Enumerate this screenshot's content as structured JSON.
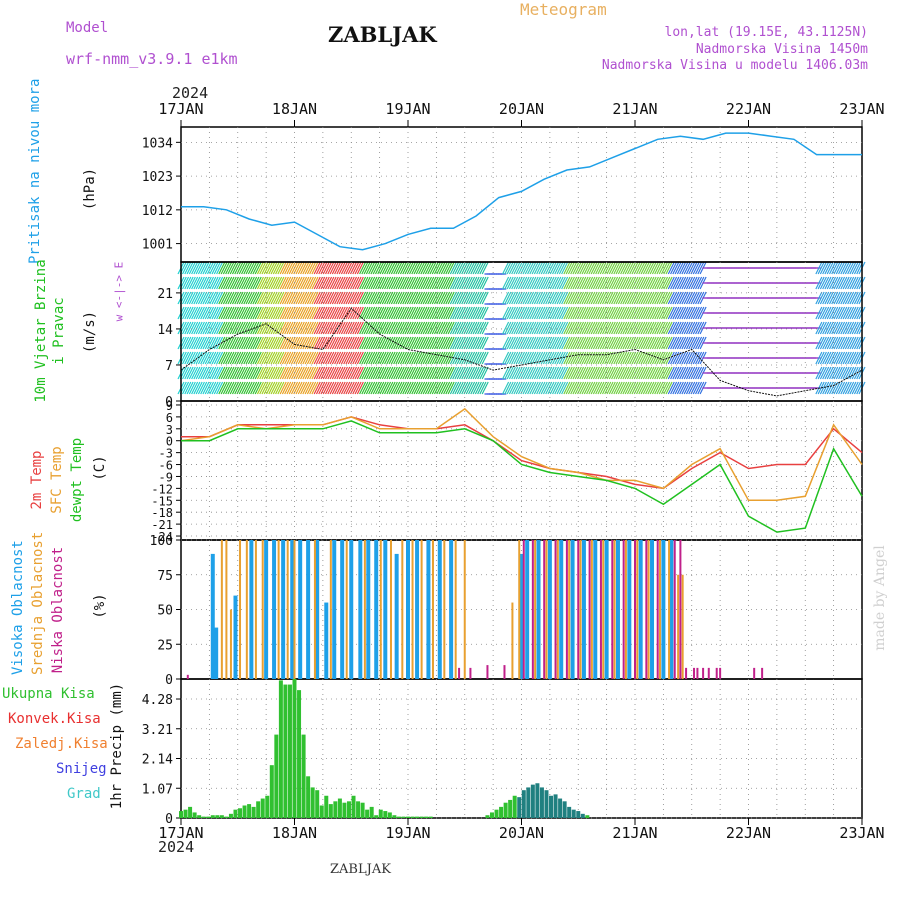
{
  "header": {
    "model_label": "Model",
    "model_name": "wrf-nmm_v3.9.1 e1km",
    "station": "ZABLJAK",
    "meteogram_label": "Meteogram",
    "lonlat": "lon,lat (19.15E, 43.1125N)",
    "altitude": "Nadmorska Visina 1450m",
    "model_altitude": "Nadmorska Visina u modelu 1406.03m",
    "year_top": "2024",
    "year_bottom": "2024",
    "footer_station": "ZABLJAK",
    "watermark": "made by Angel"
  },
  "colors": {
    "pressure": "#1ea0e8",
    "wind_label": "#20c020",
    "temp2m": "#e84040",
    "sfc": "#e8a030",
    "dew": "#20c020",
    "cloud_high": "#1ea0e8",
    "cloud_mid": "#e8a030",
    "cloud_low": "#c0208a",
    "precip_total": "#30c030",
    "precip_conv": "#e83030",
    "precip_frozen": "#f08030",
    "precip_snow": "#4040e0",
    "precip_graupel": "#40c8c8"
  },
  "chart_data": [
    {
      "type": "line",
      "panel": "pressure",
      "ylabel_name": "Pritisak na nivou mora",
      "ylabel_unit": "(hPa)",
      "x_ticks": [
        "17JAN",
        "18JAN",
        "19JAN",
        "20JAN",
        "21JAN",
        "22JAN",
        "23JAN"
      ],
      "y_ticks": [
        1001,
        1012,
        1023,
        1034
      ],
      "ylim": [
        995,
        1039
      ],
      "x_days": [
        0,
        0.2,
        0.4,
        0.6,
        0.8,
        1.0,
        1.2,
        1.4,
        1.6,
        1.8,
        2.0,
        2.2,
        2.4,
        2.6,
        2.8,
        3.0,
        3.2,
        3.4,
        3.6,
        3.8,
        4.0,
        4.2,
        4.4,
        4.6,
        4.8,
        5.0,
        5.2,
        5.4,
        5.6,
        5.8,
        6.0
      ],
      "values": [
        1013,
        1013,
        1012,
        1009,
        1007,
        1008,
        1004,
        1000,
        999,
        1001,
        1004,
        1006,
        1006,
        1010,
        1016,
        1018,
        1022,
        1025,
        1026,
        1029,
        1032,
        1035,
        1036,
        1035,
        1037,
        1037,
        1036,
        1035,
        1030,
        1030,
        1030
      ]
    },
    {
      "type": "line",
      "panel": "wind",
      "ylabel_name": "10m Vjetar Brzina i Pravac",
      "ylabel_unit": "(m/s)",
      "compass": "w <-|-> E",
      "y_ticks": [
        0,
        7,
        14,
        21
      ],
      "ylim": [
        0,
        27
      ],
      "x_days": [
        0,
        0.25,
        0.5,
        0.75,
        1.0,
        1.25,
        1.5,
        1.75,
        2.0,
        2.25,
        2.5,
        2.75,
        3.0,
        3.25,
        3.5,
        3.75,
        4.0,
        4.25,
        4.5,
        4.75,
        5.0,
        5.25,
        5.5,
        5.75,
        6.0
      ],
      "values": [
        6,
        10,
        13,
        15,
        11,
        10,
        18,
        13,
        10,
        9,
        8,
        6,
        7,
        8,
        9,
        9,
        10,
        8,
        10,
        4,
        2,
        1,
        2,
        3,
        6
      ]
    },
    {
      "type": "line",
      "panel": "temperature",
      "ylabel_names": [
        "2m Temp",
        "SFC Temp",
        "dewpt Temp"
      ],
      "ylabel_unit": "(C)",
      "y_ticks": [
        9,
        6,
        3,
        0,
        -3,
        -6,
        -9,
        -12,
        -15,
        -18,
        -21,
        -24
      ],
      "ylim": [
        -25,
        10
      ],
      "x_days": [
        0,
        0.25,
        0.5,
        0.75,
        1.0,
        1.25,
        1.5,
        1.75,
        2.0,
        2.25,
        2.5,
        2.75,
        3.0,
        3.25,
        3.5,
        3.75,
        4.0,
        4.25,
        4.5,
        4.75,
        5.0,
        5.25,
        5.5,
        5.75,
        6.0
      ],
      "series": [
        {
          "name": "2m Temp",
          "values": [
            1,
            1,
            4,
            4,
            4,
            4,
            6,
            4,
            3,
            3,
            4,
            0,
            -5,
            -7,
            -8,
            -9,
            -11,
            -12,
            -7,
            -3,
            -7,
            -6,
            -6,
            3,
            -3
          ]
        },
        {
          "name": "SFC Temp",
          "values": [
            0,
            1,
            4,
            3,
            4,
            4,
            6,
            3,
            3,
            3,
            8,
            1,
            -4,
            -7,
            -8,
            -10,
            -10,
            -12,
            -6,
            -2,
            -15,
            -15,
            -14,
            4,
            -6
          ]
        },
        {
          "name": "dewpt Temp",
          "values": [
            0,
            0,
            3,
            3,
            3,
            3,
            5,
            2,
            2,
            2,
            3,
            0,
            -6,
            -8,
            -9,
            -10,
            -12,
            -16,
            -11,
            -6,
            -19,
            -23,
            -22,
            -2,
            -14
          ]
        }
      ]
    },
    {
      "type": "bar",
      "panel": "clouds",
      "ylabel_names": [
        "Visoka Oblacnost",
        "Srednja Oblacnost",
        "Niska Oblacnost"
      ],
      "ylabel_unit": "(%)",
      "y_ticks": [
        0,
        25,
        50,
        75,
        100
      ],
      "ylim": [
        0,
        100
      ],
      "series": [
        {
          "name": "Visoka Oblacnost",
          "x_days": [
            0.28,
            0.31,
            0.48,
            0.62,
            0.75,
            0.82,
            0.9,
            0.98,
            1.05,
            1.12,
            1.2,
            1.28,
            1.35,
            1.42,
            1.5,
            1.58,
            1.65,
            1.72,
            1.8,
            1.9,
            2.0,
            2.08,
            2.18,
            2.28,
            2.38,
            3.0,
            3.05,
            3.15,
            3.25,
            3.35,
            3.45,
            3.55,
            3.65,
            3.75,
            3.85,
            3.95,
            4.05,
            4.15,
            4.25,
            4.32
          ],
          "values": [
            90,
            37,
            60,
            100,
            100,
            100,
            100,
            100,
            100,
            100,
            100,
            55,
            100,
            100,
            100,
            100,
            100,
            100,
            100,
            90,
            100,
            100,
            100,
            100,
            100,
            90,
            100,
            100,
            100,
            100,
            100,
            100,
            100,
            100,
            100,
            100,
            100,
            100,
            100,
            100
          ]
        },
        {
          "name": "Srednja Oblacnost",
          "x_days": [
            0.36,
            0.4,
            0.44,
            0.52,
            0.58,
            0.66,
            0.72,
            0.86,
            0.94,
            1.0,
            1.18,
            1.32,
            1.46,
            1.62,
            1.76,
            1.85,
            1.95,
            2.04,
            2.12,
            2.22,
            2.32,
            2.42,
            2.5,
            2.92,
            2.98,
            3.12,
            3.22,
            3.32,
            3.42,
            3.52,
            3.62,
            3.72,
            3.82,
            3.92,
            4.02,
            4.12,
            4.22,
            4.3,
            4.38,
            4.42
          ],
          "values": [
            100,
            100,
            50,
            100,
            100,
            100,
            100,
            100,
            100,
            100,
            100,
            100,
            100,
            100,
            100,
            100,
            100,
            100,
            100,
            100,
            100,
            100,
            100,
            55,
            100,
            100,
            100,
            100,
            100,
            100,
            100,
            100,
            100,
            100,
            100,
            100,
            100,
            100,
            75,
            75
          ]
        },
        {
          "name": "Niska Oblacnost",
          "x_days": [
            0.06,
            2.45,
            2.55,
            2.7,
            2.85,
            3.02,
            3.1,
            3.2,
            3.3,
            3.4,
            3.5,
            3.6,
            3.7,
            3.8,
            3.9,
            4.0,
            4.1,
            4.2,
            4.35,
            4.4,
            4.45,
            4.52,
            4.55,
            4.6,
            4.65,
            4.72,
            4.75,
            5.05,
            5.12
          ],
          "values": [
            3,
            8,
            8,
            10,
            10,
            100,
            100,
            100,
            100,
            100,
            100,
            100,
            100,
            100,
            100,
            100,
            100,
            100,
            100,
            100,
            8,
            8,
            8,
            8,
            8,
            8,
            8,
            8,
            8
          ]
        }
      ]
    },
    {
      "type": "bar",
      "panel": "precipitation",
      "legend": [
        "Ukupna Kisa",
        "Konvek.Kisa",
        "Zaledj.Kisa",
        "Snijeg",
        "Grad"
      ],
      "ylabel_unit": "1hr Precip (mm)",
      "y_ticks": [
        0,
        1.07,
        2.14,
        3.21,
        4.28
      ],
      "ylim": [
        0,
        5.0
      ],
      "x_days": [
        0.0,
        0.04,
        0.08,
        0.12,
        0.16,
        0.2,
        0.24,
        0.28,
        0.32,
        0.36,
        0.4,
        0.44,
        0.48,
        0.52,
        0.56,
        0.6,
        0.64,
        0.68,
        0.72,
        0.76,
        0.8,
        0.84,
        0.88,
        0.92,
        0.96,
        1.0,
        1.04,
        1.08,
        1.12,
        1.16,
        1.2,
        1.24,
        1.28,
        1.32,
        1.36,
        1.4,
        1.44,
        1.48,
        1.52,
        1.56,
        1.6,
        1.64,
        1.68,
        1.72,
        1.76,
        1.8,
        1.84,
        1.88,
        1.92,
        1.96,
        2.0,
        2.04,
        2.08,
        2.12,
        2.16,
        2.2,
        2.7,
        2.74,
        2.78,
        2.82,
        2.86,
        2.9,
        2.94,
        2.98,
        3.02,
        3.06,
        3.1,
        3.14,
        3.18,
        3.22,
        3.26,
        3.3,
        3.34,
        3.38,
        3.42,
        3.46,
        3.5,
        3.54,
        3.58
      ],
      "values": [
        0.25,
        0.3,
        0.4,
        0.2,
        0.1,
        0.05,
        0.05,
        0.1,
        0.1,
        0.1,
        0.05,
        0.15,
        0.3,
        0.35,
        0.45,
        0.5,
        0.4,
        0.6,
        0.7,
        0.8,
        1.9,
        3.0,
        4.95,
        4.8,
        4.8,
        5.0,
        4.6,
        3.0,
        1.5,
        1.1,
        1.0,
        0.45,
        0.8,
        0.5,
        0.6,
        0.7,
        0.55,
        0.6,
        0.8,
        0.6,
        0.55,
        0.3,
        0.4,
        0.1,
        0.3,
        0.25,
        0.2,
        0.1,
        0.05,
        0.05,
        0.05,
        0.05,
        0.05,
        0.05,
        0.05,
        0.05,
        0.1,
        0.2,
        0.3,
        0.4,
        0.55,
        0.65,
        0.8,
        0.75,
        1.0,
        1.1,
        1.2,
        1.25,
        1.1,
        1.0,
        0.8,
        0.85,
        0.7,
        0.6,
        0.4,
        0.3,
        0.25,
        0.15,
        0.1
      ]
    }
  ]
}
